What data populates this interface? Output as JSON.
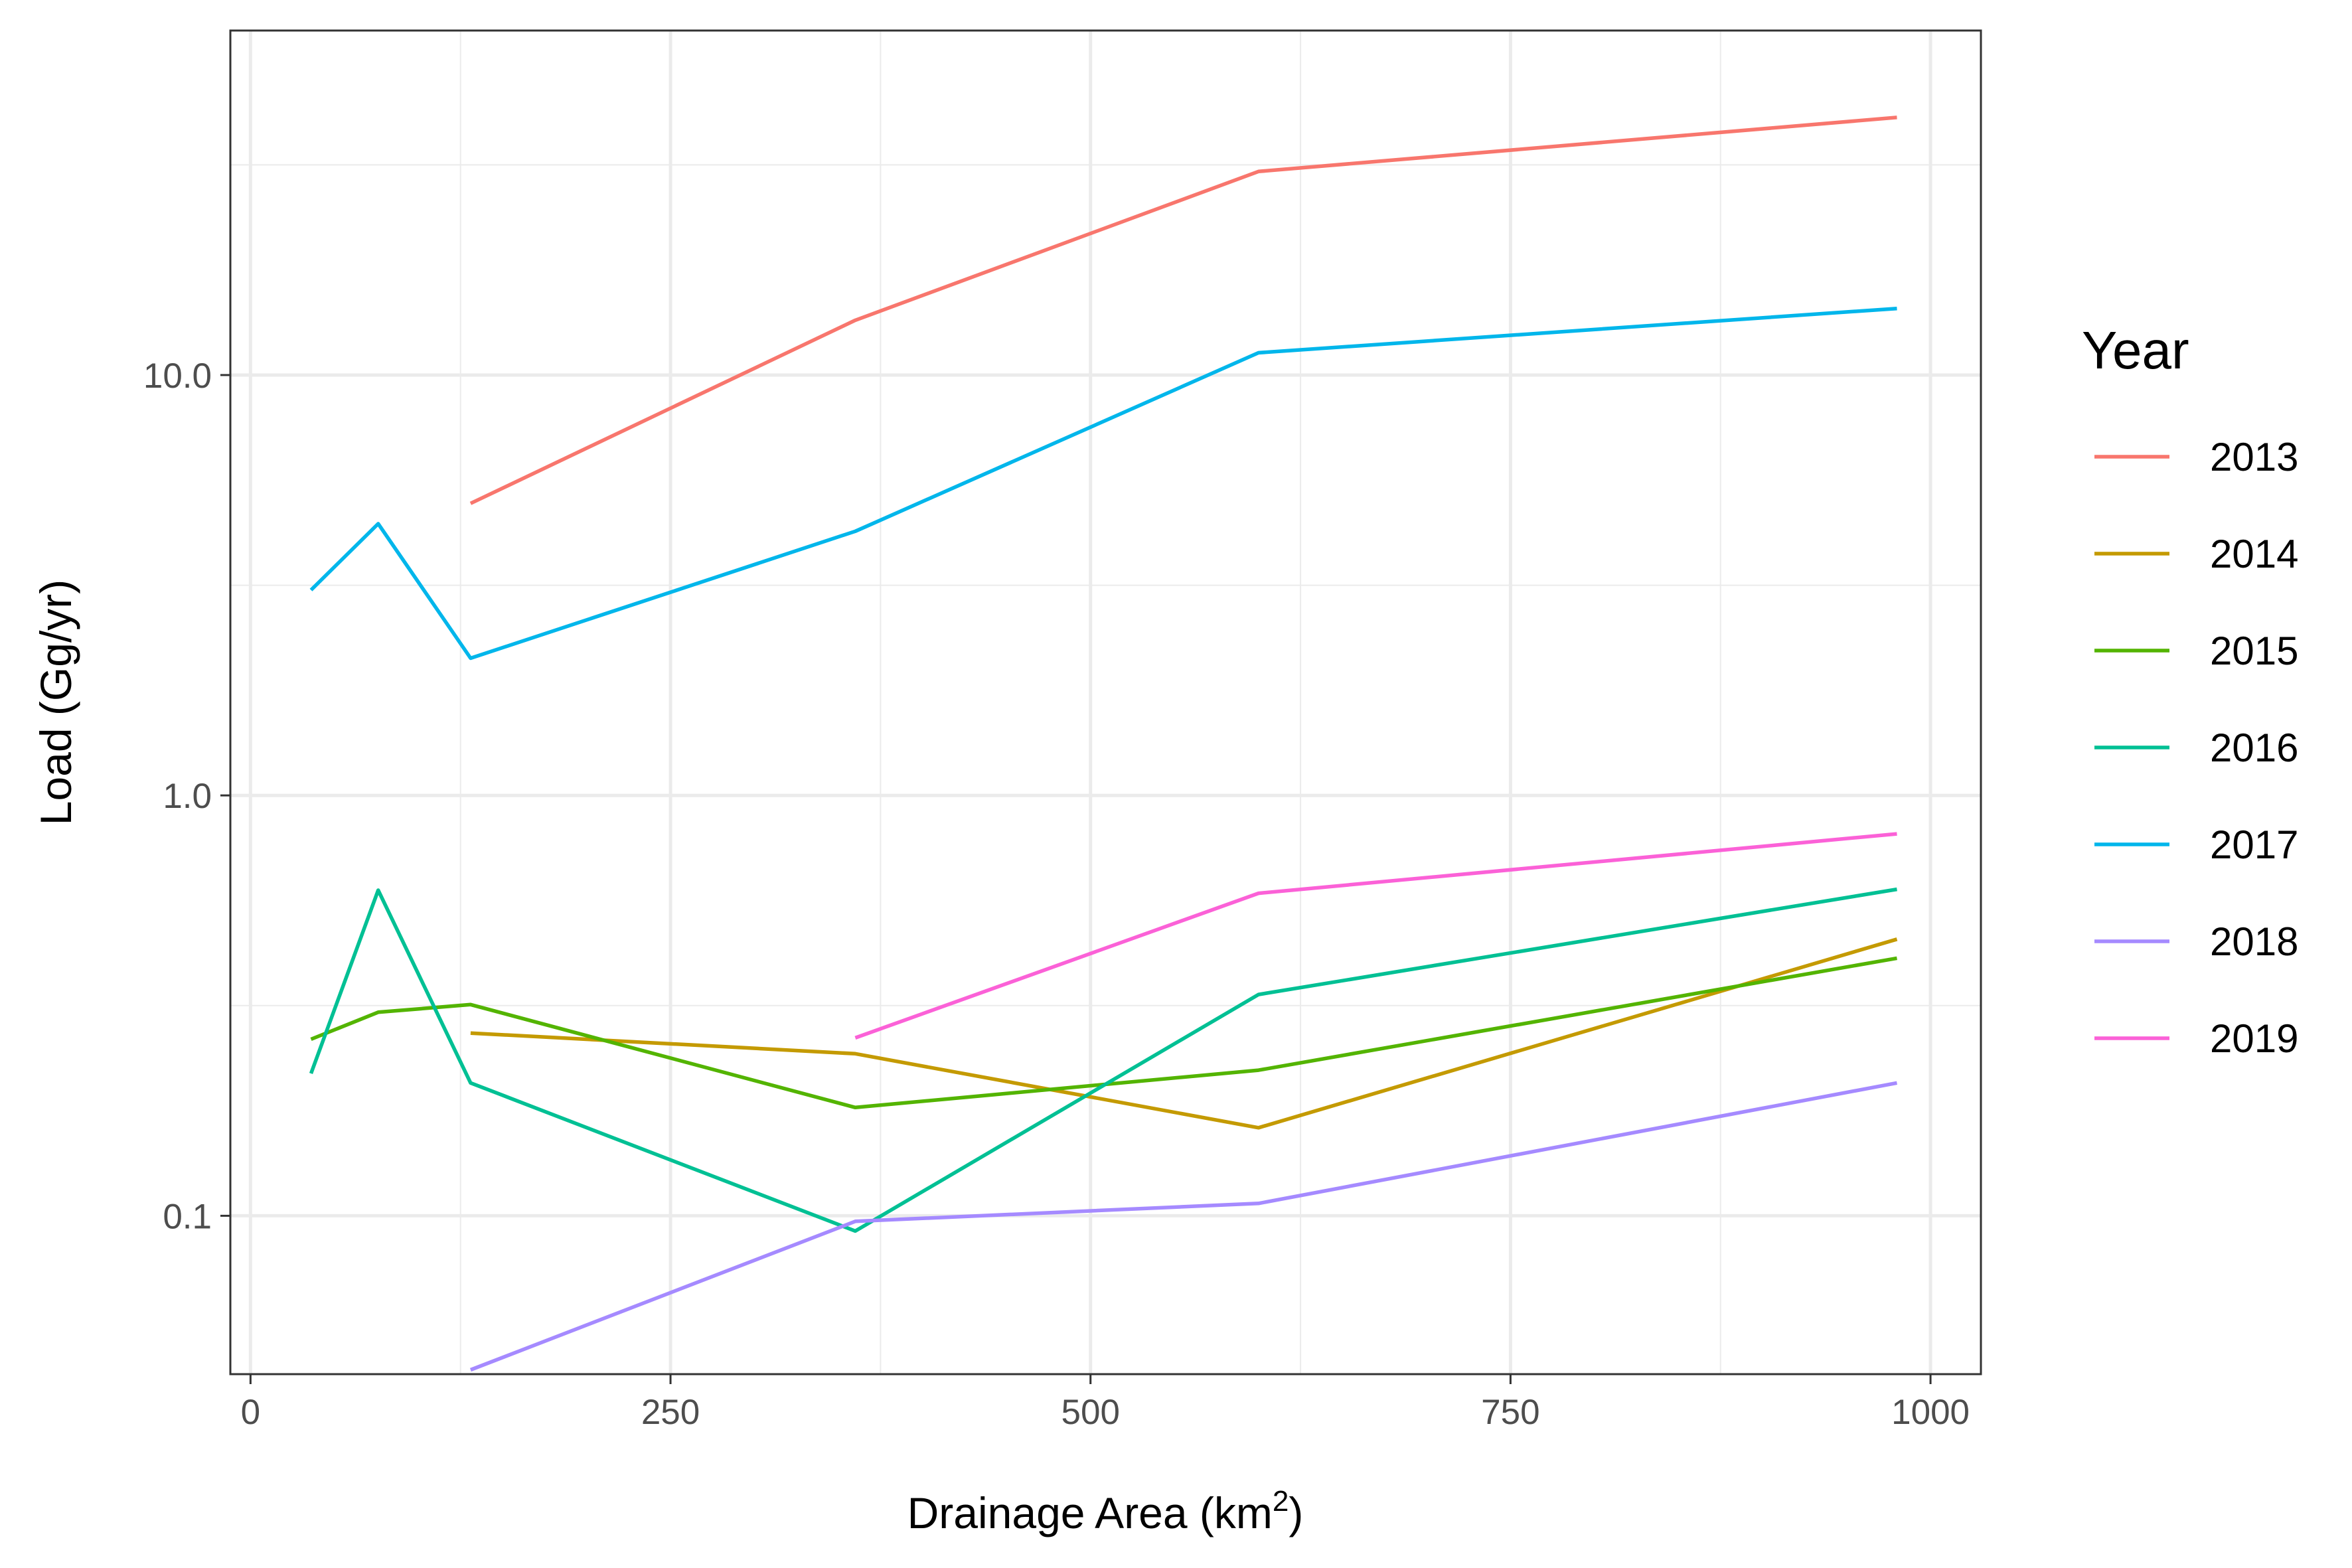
{
  "chart_data": {
    "type": "line",
    "xlabel": "Drainage Area (km",
    "xlabel_sup": "2",
    "xlabel_suffix": ")",
    "ylabel": "Load (Gg/yr)",
    "legend_title": "Year",
    "legend_position": "right",
    "y_scale": "log10",
    "grid": true,
    "xlim": [
      -12,
      1030
    ],
    "ylim": [
      0.042,
      66
    ],
    "x_ticks": [
      0,
      250,
      500,
      750,
      1000
    ],
    "x_tick_labels": [
      "0",
      "250",
      "500",
      "750",
      "1000"
    ],
    "y_ticks": [
      0.1,
      1.0,
      10.0
    ],
    "y_tick_labels": [
      "0.1",
      "1.0",
      "10.0"
    ],
    "series": [
      {
        "name": "2013",
        "color": "#F8766D",
        "x": [
          131,
          360,
          600,
          980
        ],
        "y": [
          4.95,
          13.5,
          30.5,
          41.0
        ]
      },
      {
        "name": "2014",
        "color": "#C49A00",
        "x": [
          131,
          360,
          600,
          980
        ],
        "y": [
          0.272,
          0.243,
          0.162,
          0.455
        ]
      },
      {
        "name": "2015",
        "color": "#53B400",
        "x": [
          36,
          76,
          131,
          360,
          600,
          980
        ],
        "y": [
          0.263,
          0.305,
          0.318,
          0.181,
          0.222,
          0.41
        ]
      },
      {
        "name": "2016",
        "color": "#00C094",
        "x": [
          36,
          76,
          131,
          360,
          600,
          980
        ],
        "y": [
          0.218,
          0.595,
          0.207,
          0.092,
          0.336,
          0.598
        ]
      },
      {
        "name": "2017",
        "color": "#00B6EB",
        "x": [
          36,
          76,
          131,
          360,
          600,
          980
        ],
        "y": [
          3.08,
          4.43,
          2.12,
          4.25,
          11.3,
          14.4
        ]
      },
      {
        "name": "2018",
        "color": "#A58AFF",
        "x": [
          131,
          360,
          600,
          980
        ],
        "y": [
          0.043,
          0.097,
          0.107,
          0.207
        ]
      },
      {
        "name": "2019",
        "color": "#FB61D7",
        "x": [
          360,
          600,
          980
        ],
        "y": [
          0.265,
          0.585,
          0.81
        ]
      }
    ]
  }
}
